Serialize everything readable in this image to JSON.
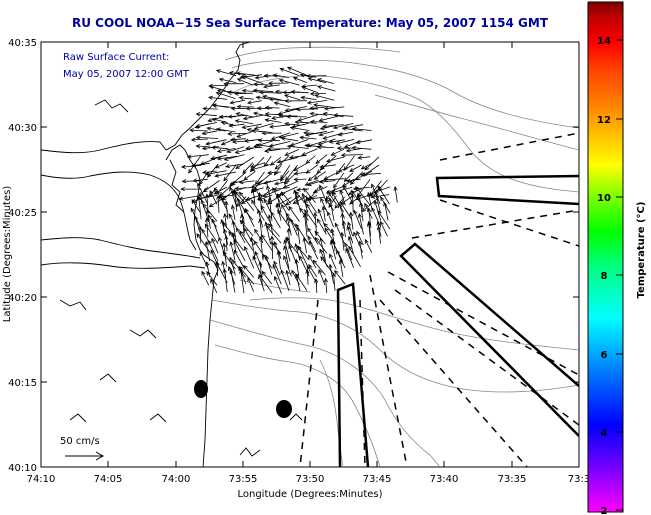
{
  "title": "RU COOL  NOAA−15  Sea Surface Temperature:  May 05, 2007 1154 GMT",
  "annotation": {
    "line1": "Raw Surface Current:",
    "line2": "May 05, 2007 12:00 GMT"
  },
  "x_axis": {
    "label": "Longitude (Degrees:Minutes)",
    "ticks": [
      "74:10",
      "74:05",
      "74:00",
      "73:55",
      "73:50",
      "73:45",
      "73:40",
      "73:35",
      "73:3"
    ]
  },
  "y_axis": {
    "label": "Latitude (Degrees:Minutes)",
    "ticks": [
      "40:35",
      "40:30",
      "40:25",
      "40:20",
      "40:15",
      "40:10"
    ]
  },
  "scale_vector": {
    "label": "50 cm/s"
  },
  "colorbar": {
    "label": "Temperature (°C)",
    "ticks": [
      "14",
      "12",
      "10",
      "8",
      "6",
      "4",
      "2"
    ],
    "colors": [
      "#ff00ff",
      "#8000ff",
      "#0000ff",
      "#0080ff",
      "#00ffff",
      "#00ff80",
      "#00ff00",
      "#80ff00",
      "#ffff00",
      "#ffc000",
      "#ff8000",
      "#ff4000",
      "#ff0000",
      "#c00000",
      "#800000"
    ]
  },
  "colors": {
    "title": "#0000a0",
    "coast": "#000000",
    "bathymetry": "#888888"
  }
}
